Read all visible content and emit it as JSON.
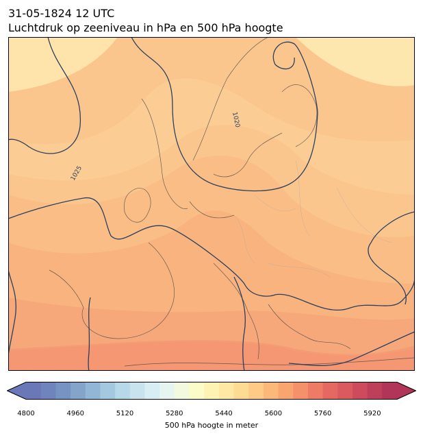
{
  "header": {
    "datetime": "31-05-1824 12 UTC",
    "title": "Luchtdruk op zeeniveau in hPa en 500 hPa hoogte"
  },
  "map": {
    "isobar_labels": [
      "1020",
      "1025"
    ],
    "isobar_color": "#2a3f5f"
  },
  "colorbar": {
    "label": "500 hPa hoogte in meter",
    "min": 4800,
    "max": 6000,
    "step": 40,
    "ticks": [
      "4800",
      "4960",
      "5120",
      "5280",
      "5440",
      "5600",
      "5760",
      "5920"
    ],
    "colors": [
      "#6b78b8",
      "#6f84bd",
      "#7793c4",
      "#84a4ca",
      "#92b6d6",
      "#a3c8e0",
      "#b6d8e8",
      "#c8e3ee",
      "#d9eef4",
      "#e6f5ef",
      "#f2f9df",
      "#fbfcc8",
      "#fff3b4",
      "#ffe8a3",
      "#fedb93",
      "#fdcb85",
      "#fbb879",
      "#f8a570",
      "#f4916a",
      "#ee7b66",
      "#e56863",
      "#da5a60",
      "#cd4b5d",
      "#be3f5a",
      "#b03558"
    ]
  }
}
